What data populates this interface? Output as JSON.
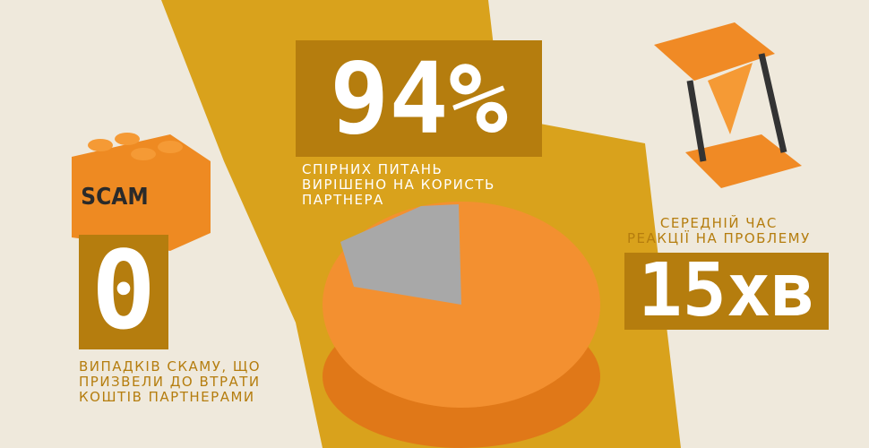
{
  "brick_label": "SCAM",
  "stats": [
    {
      "value": "94%",
      "label": [
        "СПІРНИХ ПИТАНЬ",
        "ВИРІШЕНО НА КОРИСТЬ",
        "ПАРТНЕРА"
      ]
    },
    {
      "value": "0",
      "label": [
        "ВИПАДКІВ СКАМУ, ЩО",
        "ПРИЗВЕЛИ ДО ВТРАТИ",
        "КОШТІВ ПАРТНЕРАМИ"
      ]
    },
    {
      "value": "15хв",
      "label": [
        "СЕРЕДНІЙ ЧАС",
        "РЕАКЦІЇ НА ПРОБЛЕМУ"
      ]
    }
  ]
}
